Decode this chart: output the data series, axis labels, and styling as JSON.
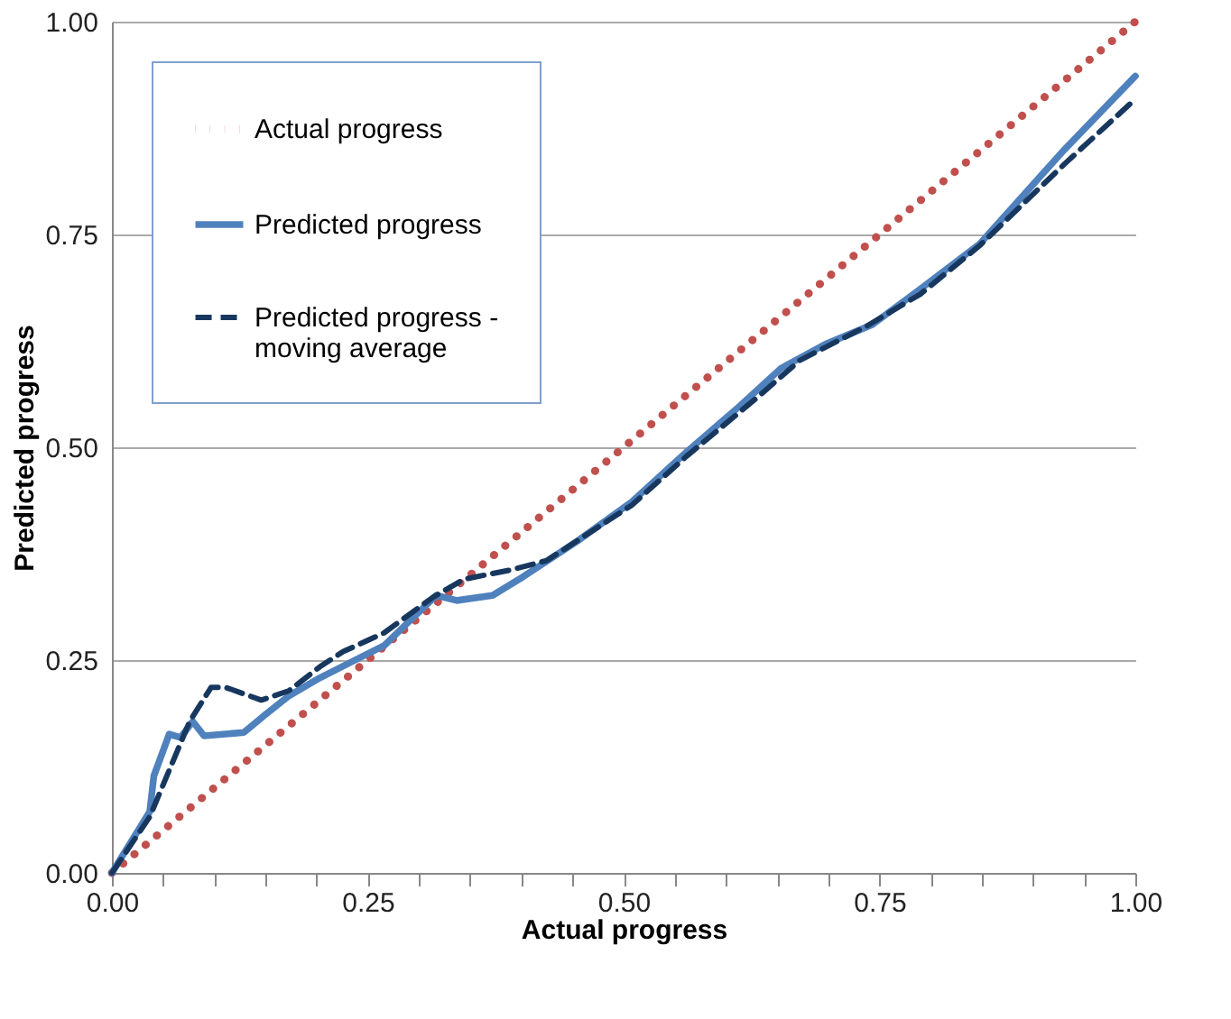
{
  "chart_data": {
    "type": "line",
    "xlabel": "Actual progress",
    "ylabel": "Predicted progress",
    "xlim": [
      0,
      1
    ],
    "ylim": [
      0,
      1
    ],
    "xticks": [
      {
        "value": 0,
        "label": "0.00"
      },
      {
        "value": 0.05,
        "label": null
      },
      {
        "value": 0.1,
        "label": null
      },
      {
        "value": 0.15,
        "label": null
      },
      {
        "value": 0.2,
        "label": null
      },
      {
        "value": 0.25,
        "label": "0.25"
      },
      {
        "value": 0.3,
        "label": null
      },
      {
        "value": 0.35,
        "label": null
      },
      {
        "value": 0.4,
        "label": null
      },
      {
        "value": 0.45,
        "label": null
      },
      {
        "value": 0.5,
        "label": "0.50"
      },
      {
        "value": 0.55,
        "label": null
      },
      {
        "value": 0.6,
        "label": null
      },
      {
        "value": 0.65,
        "label": null
      },
      {
        "value": 0.7,
        "label": null
      },
      {
        "value": 0.75,
        "label": "0.75"
      },
      {
        "value": 0.8,
        "label": null
      },
      {
        "value": 0.85,
        "label": null
      },
      {
        "value": 0.9,
        "label": null
      },
      {
        "value": 0.95,
        "label": null
      },
      {
        "value": 1,
        "label": "1.00"
      }
    ],
    "yticks": [
      {
        "value": 0,
        "label": "0.00"
      },
      {
        "value": 0.25,
        "label": "0.25"
      },
      {
        "value": 0.5,
        "label": "0.50"
      },
      {
        "value": 0.75,
        "label": "0.75"
      },
      {
        "value": 1,
        "label": "1.00"
      }
    ],
    "grid": "y",
    "legend": "top left",
    "series": [
      {
        "name": "Actual progress",
        "color": "#c0504d",
        "line_style": "dotted",
        "x": [
          0,
          1
        ],
        "values": [
          0,
          1
        ]
      },
      {
        "name": "Predicted progress",
        "color": "#4f81bd",
        "line_style": "solid",
        "x": [
          0,
          0.037,
          0.041,
          0.056,
          0.067,
          0.079,
          0.09,
          0.129,
          0.15,
          0.173,
          0.203,
          0.231,
          0.266,
          0.284,
          0.317,
          0.337,
          0.372,
          0.402,
          0.455,
          0.508,
          0.561,
          0.614,
          0.654,
          0.697,
          0.743,
          0.79,
          0.848,
          0.931,
          1.0
        ],
        "values": [
          0,
          0.072,
          0.114,
          0.163,
          0.159,
          0.178,
          0.161,
          0.165,
          0.186,
          0.208,
          0.229,
          0.246,
          0.267,
          0.288,
          0.326,
          0.32,
          0.326,
          0.348,
          0.39,
          0.436,
          0.494,
          0.549,
          0.593,
          0.621,
          0.644,
          0.686,
          0.739,
          0.85,
          0.936
        ]
      },
      {
        "name": "Predicted progress - moving average",
        "color": "#17375e",
        "line_style": "dashed",
        "x": [
          0,
          0.037,
          0.076,
          0.097,
          0.111,
          0.146,
          0.173,
          0.203,
          0.226,
          0.266,
          0.314,
          0.344,
          0.39,
          0.425,
          0.508,
          0.561,
          0.631,
          0.672,
          0.737,
          0.79,
          0.848,
          0.931,
          1.0
        ],
        "values": [
          0,
          0.066,
          0.178,
          0.218,
          0.218,
          0.203,
          0.214,
          0.242,
          0.26,
          0.282,
          0.324,
          0.345,
          0.356,
          0.367,
          0.432,
          0.489,
          0.559,
          0.602,
          0.642,
          0.68,
          0.737,
          0.833,
          0.909
        ]
      }
    ]
  }
}
